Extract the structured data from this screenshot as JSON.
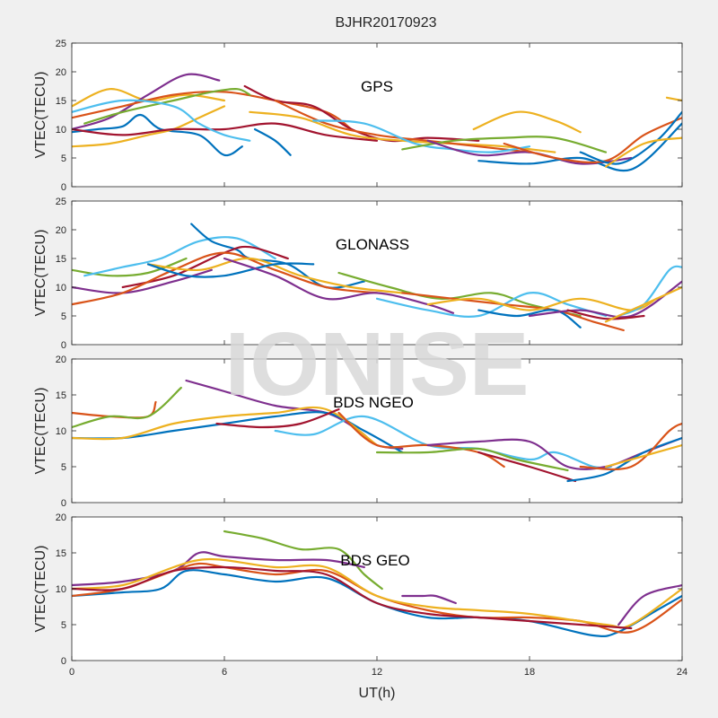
{
  "figure": {
    "title": "BJHR20170923",
    "watermark": "IONISE",
    "xlabel": "UT(h)",
    "xlim": [
      0,
      24
    ],
    "xticks": [
      0,
      6,
      12,
      18,
      24
    ]
  },
  "colors": [
    "#0072BD",
    "#D95319",
    "#EDB120",
    "#7E2F8E",
    "#77AC30",
    "#4DBEEE",
    "#A2142F"
  ],
  "chart_data": [
    {
      "type": "line",
      "panel_label": "GPS",
      "ylabel": "VTEC(TECU)",
      "xlim": [
        0,
        24
      ],
      "ylim": [
        0,
        25
      ],
      "yticks": [
        0,
        5,
        10,
        15,
        20,
        25
      ],
      "series": [
        {
          "color_index": 2,
          "x": [
            0,
            1.5,
            3,
            4.5,
            6
          ],
          "y": [
            14,
            17,
            15,
            16,
            15
          ]
        },
        {
          "color_index": 3,
          "x": [
            0,
            1.5,
            3,
            4.5,
            5.8
          ],
          "y": [
            10,
            12,
            16,
            19.5,
            18.5
          ]
        },
        {
          "color_index": 1,
          "x": [
            0,
            2,
            4,
            6,
            8,
            10,
            11
          ],
          "y": [
            12,
            14,
            16,
            16.5,
            15,
            13,
            10
          ]
        },
        {
          "color_index": 0,
          "x": [
            0,
            1,
            2,
            2.7,
            3.5,
            5,
            6,
            6.7
          ],
          "y": [
            9.5,
            10,
            10.5,
            12.5,
            10,
            9,
            5.5,
            7
          ]
        },
        {
          "color_index": 4,
          "x": [
            0.5,
            2,
            4,
            5.5,
            6.5,
            7
          ],
          "y": [
            11,
            13,
            15,
            16.5,
            17,
            16
          ]
        },
        {
          "color_index": 2,
          "x": [
            0,
            1.5,
            3,
            4,
            5,
            6
          ],
          "y": [
            7,
            7.5,
            9,
            10,
            12,
            14
          ]
        },
        {
          "color_index": 6,
          "x": [
            0,
            2,
            4,
            6,
            8,
            10,
            12
          ],
          "y": [
            10,
            9,
            10,
            10,
            11,
            9,
            8
          ]
        },
        {
          "color_index": 5,
          "x": [
            0,
            2,
            4,
            5,
            6,
            7
          ],
          "y": [
            13,
            15,
            14,
            11,
            9,
            8
          ]
        },
        {
          "color_index": 6,
          "x": [
            6.8,
            8,
            9.5,
            11,
            12.5,
            14,
            16
          ],
          "y": [
            17.5,
            15,
            14,
            10,
            8,
            8.5,
            8
          ]
        },
        {
          "color_index": 2,
          "x": [
            7,
            9,
            11,
            13,
            15,
            17,
            19
          ],
          "y": [
            13,
            12,
            9,
            8,
            7.5,
            7,
            6
          ]
        },
        {
          "color_index": 1,
          "x": [
            8,
            10,
            12,
            14,
            16,
            18
          ],
          "y": [
            15,
            11,
            9,
            8,
            7,
            6
          ]
        },
        {
          "color_index": 5,
          "x": [
            9.5,
            11.5,
            13.5,
            15,
            16.5,
            18
          ],
          "y": [
            11.5,
            11,
            7.5,
            6.5,
            6,
            7
          ]
        },
        {
          "color_index": 0,
          "x": [
            7.2,
            8,
            8.6
          ],
          "y": [
            10,
            8,
            5.5
          ]
        },
        {
          "color_index": 2,
          "x": [
            15.8,
            17.5,
            19,
            20
          ],
          "y": [
            10,
            13,
            11.5,
            9.5
          ]
        },
        {
          "color_index": 4,
          "x": [
            13,
            15,
            17,
            19,
            21
          ],
          "y": [
            6.5,
            8,
            8.5,
            8.5,
            6
          ]
        },
        {
          "color_index": 3,
          "x": [
            14,
            16,
            18,
            20,
            22
          ],
          "y": [
            8,
            5.5,
            6,
            4,
            5
          ]
        },
        {
          "color_index": 0,
          "x": [
            16,
            18,
            20,
            22,
            24
          ],
          "y": [
            4.5,
            4,
            5,
            3,
            11
          ]
        },
        {
          "color_index": 1,
          "x": [
            17,
            19,
            21,
            22.5,
            24
          ],
          "y": [
            7.5,
            5,
            4.5,
            9,
            12
          ]
        },
        {
          "color_index": 0,
          "x": [
            20,
            21.5,
            23,
            24
          ],
          "y": [
            6,
            4,
            8,
            13
          ]
        },
        {
          "color_index": 2,
          "x": [
            21,
            22.5,
            24
          ],
          "y": [
            3.5,
            7.5,
            8.5
          ]
        },
        {
          "color_index": 2,
          "x": [
            23.4,
            24
          ],
          "y": [
            15.5,
            15
          ]
        }
      ]
    },
    {
      "type": "line",
      "panel_label": "GLONASS",
      "ylabel": "VTEC(TECU)",
      "xlim": [
        0,
        24
      ],
      "ylim": [
        0,
        25
      ],
      "yticks": [
        0,
        5,
        10,
        15,
        20,
        25
      ],
      "series": [
        {
          "color_index": 4,
          "x": [
            0,
            1.5,
            3,
            4.5
          ],
          "y": [
            13,
            12,
            12.5,
            15
          ]
        },
        {
          "color_index": 3,
          "x": [
            0,
            2,
            4,
            5.5
          ],
          "y": [
            10,
            9,
            11,
            13
          ]
        },
        {
          "color_index": 5,
          "x": [
            0.5,
            2,
            3.5,
            5,
            6.5,
            8
          ],
          "y": [
            12,
            13.5,
            15,
            18,
            18.5,
            15
          ]
        },
        {
          "color_index": 0,
          "x": [
            4.7,
            5.5,
            6.5,
            7,
            8.5,
            10,
            11.5
          ],
          "y": [
            21,
            18,
            16.5,
            15,
            14,
            10,
            11
          ]
        },
        {
          "color_index": 6,
          "x": [
            2,
            4,
            6,
            7,
            8.5
          ],
          "y": [
            10,
            12,
            16,
            17,
            15
          ]
        },
        {
          "color_index": 1,
          "x": [
            0,
            2,
            4,
            6,
            8,
            10,
            12
          ],
          "y": [
            7,
            9,
            13,
            16,
            13,
            10,
            9
          ]
        },
        {
          "color_index": 2,
          "x": [
            3,
            5,
            7,
            9,
            11,
            13
          ],
          "y": [
            14,
            13,
            15,
            12,
            10,
            9
          ]
        },
        {
          "color_index": 0,
          "x": [
            3,
            4.5,
            6,
            8,
            9.5
          ],
          "y": [
            14,
            12,
            12,
            14,
            14
          ]
        },
        {
          "color_index": 3,
          "x": [
            6,
            8,
            10,
            12,
            14,
            15
          ],
          "y": [
            15,
            12,
            8,
            9,
            7,
            5.5
          ]
        },
        {
          "color_index": 4,
          "x": [
            10.5,
            12.5,
            14.5,
            16.5,
            18,
            20
          ],
          "y": [
            12.5,
            10,
            8,
            9,
            7,
            5
          ]
        },
        {
          "color_index": 5,
          "x": [
            12,
            14,
            16,
            18,
            19.5,
            21
          ],
          "y": [
            8,
            6,
            5,
            9,
            7,
            5
          ]
        },
        {
          "color_index": 1,
          "x": [
            13,
            15,
            17,
            19,
            20.5,
            21.7
          ],
          "y": [
            9,
            8,
            7,
            6,
            4,
            2.5
          ]
        },
        {
          "color_index": 2,
          "x": [
            14,
            16,
            18,
            20,
            22,
            23
          ],
          "y": [
            7,
            8,
            6,
            8,
            6,
            8
          ]
        },
        {
          "color_index": 0,
          "x": [
            16,
            17.5,
            19,
            20
          ],
          "y": [
            6,
            5,
            6,
            3
          ]
        },
        {
          "color_index": 3,
          "x": [
            18,
            20,
            22,
            24
          ],
          "y": [
            5,
            6,
            5,
            11
          ]
        },
        {
          "color_index": 6,
          "x": [
            19.5,
            21,
            22.5
          ],
          "y": [
            6,
            4.5,
            5
          ]
        },
        {
          "color_index": 5,
          "x": [
            21.5,
            22.5,
            23.5,
            24
          ],
          "y": [
            5,
            7,
            13,
            13.5
          ]
        },
        {
          "color_index": 2,
          "x": [
            21,
            22.5,
            24
          ],
          "y": [
            4,
            7,
            10
          ]
        }
      ]
    },
    {
      "type": "line",
      "panel_label": "BDS NGEO",
      "ylabel": "VTEC(TECU)",
      "xlim": [
        0,
        24
      ],
      "ylim": [
        0,
        20
      ],
      "yticks": [
        0,
        5,
        10,
        15,
        20
      ],
      "series": [
        {
          "color_index": 1,
          "x": [
            0,
            1.5,
            3,
            3.3
          ],
          "y": [
            12.5,
            12,
            12,
            14
          ]
        },
        {
          "color_index": 4,
          "x": [
            0,
            1.5,
            3,
            4.3
          ],
          "y": [
            10.5,
            12,
            12,
            16
          ]
        },
        {
          "color_index": 3,
          "x": [
            4.5,
            6,
            8,
            10,
            11.3,
            12,
            13
          ],
          "y": [
            17,
            15.5,
            13.5,
            12.5,
            10,
            8,
            7.5
          ]
        },
        {
          "color_index": 0,
          "x": [
            0,
            2,
            4,
            6,
            8,
            10,
            11.5,
            13
          ],
          "y": [
            9,
            9,
            10,
            11,
            12,
            12.5,
            10,
            7
          ]
        },
        {
          "color_index": 2,
          "x": [
            0,
            2,
            4,
            6,
            8,
            10,
            12
          ],
          "y": [
            9,
            9,
            11,
            12,
            12.5,
            13,
            8
          ]
        },
        {
          "color_index": 6,
          "x": [
            5.7,
            7.5,
            9,
            10.5
          ],
          "y": [
            11,
            10.5,
            11,
            13
          ]
        },
        {
          "color_index": 5,
          "x": [
            8,
            9.5,
            11.5,
            14,
            16,
            18,
            19,
            20.5,
            21.2
          ],
          "y": [
            10,
            9.5,
            12,
            8,
            7.5,
            6,
            7,
            5,
            5
          ]
        },
        {
          "color_index": 1,
          "x": [
            10.5,
            12,
            14,
            16,
            17
          ],
          "y": [
            12.5,
            8,
            8,
            7,
            5
          ]
        },
        {
          "color_index": 3,
          "x": [
            14,
            16,
            18,
            19.5,
            21,
            22.5,
            24
          ],
          "y": [
            8,
            8.5,
            8.5,
            5,
            5,
            7,
            9
          ]
        },
        {
          "color_index": 4,
          "x": [
            12,
            14,
            16,
            17.5,
            19.5
          ],
          "y": [
            7,
            7,
            7.5,
            6,
            4.5
          ]
        },
        {
          "color_index": 6,
          "x": [
            16,
            18,
            19.8
          ],
          "y": [
            7,
            5,
            3
          ]
        },
        {
          "color_index": 0,
          "x": [
            19.5,
            21,
            22.5,
            24
          ],
          "y": [
            3,
            4,
            7,
            9
          ]
        },
        {
          "color_index": 1,
          "x": [
            20,
            22,
            23.5,
            24
          ],
          "y": [
            5,
            5,
            10,
            11
          ]
        },
        {
          "color_index": 2,
          "x": [
            21,
            22.5,
            24
          ],
          "y": [
            5,
            6.5,
            8
          ]
        }
      ]
    },
    {
      "type": "line",
      "panel_label": "BDS GEO",
      "ylabel": "VTEC(TECU)",
      "xlim": [
        0,
        24
      ],
      "ylim": [
        0,
        20
      ],
      "yticks": [
        0,
        5,
        10,
        15,
        20
      ],
      "series": [
        {
          "color_index": 4,
          "x": [
            6,
            7.5,
            9,
            10.5,
            11.5,
            12.2
          ],
          "y": [
            18,
            17,
            15.5,
            15.5,
            12,
            10
          ]
        },
        {
          "color_index": 3,
          "x": [
            0,
            2,
            4,
            5,
            6,
            8,
            10,
            11.5
          ],
          "y": [
            10.5,
            11,
            12.5,
            15,
            14.5,
            14,
            14,
            13
          ]
        },
        {
          "color_index": 3,
          "x": [
            13,
            13.8,
            14.3,
            15.1
          ],
          "y": [
            9,
            9,
            9,
            8
          ]
        },
        {
          "color_index": 0,
          "x": [
            0,
            2,
            3.5,
            4.5,
            6,
            8,
            10,
            12,
            14,
            16,
            18,
            20.5,
            21.5,
            23,
            24
          ],
          "y": [
            9,
            9.5,
            10,
            12.5,
            12,
            11,
            11.5,
            8,
            6,
            6,
            5.5,
            3.5,
            4,
            7,
            9
          ]
        },
        {
          "color_index": 1,
          "x": [
            0,
            2,
            4,
            5,
            6,
            8,
            10,
            12,
            14,
            16,
            18,
            20,
            22,
            24
          ],
          "y": [
            9,
            10,
            12.5,
            13.5,
            13,
            12,
            12.5,
            9,
            7,
            6,
            6,
            5.5,
            4,
            8.5
          ]
        },
        {
          "color_index": 2,
          "x": [
            0,
            2,
            4,
            5,
            6,
            8,
            10,
            12,
            14,
            16,
            18,
            21,
            22,
            24
          ],
          "y": [
            10,
            10.5,
            13,
            14,
            14,
            13,
            13,
            9,
            7.5,
            7,
            6.5,
            5,
            5,
            10
          ]
        },
        {
          "color_index": 6,
          "x": [
            0,
            2,
            4,
            6,
            8,
            10,
            12,
            14,
            16,
            18,
            20,
            22
          ],
          "y": [
            10,
            10,
            12.5,
            13,
            12.5,
            12,
            8,
            6.5,
            6,
            5.5,
            5,
            4.5
          ]
        },
        {
          "color_index": 3,
          "x": [
            21.5,
            22.5,
            24
          ],
          "y": [
            5,
            9,
            10.5
          ]
        }
      ]
    }
  ]
}
